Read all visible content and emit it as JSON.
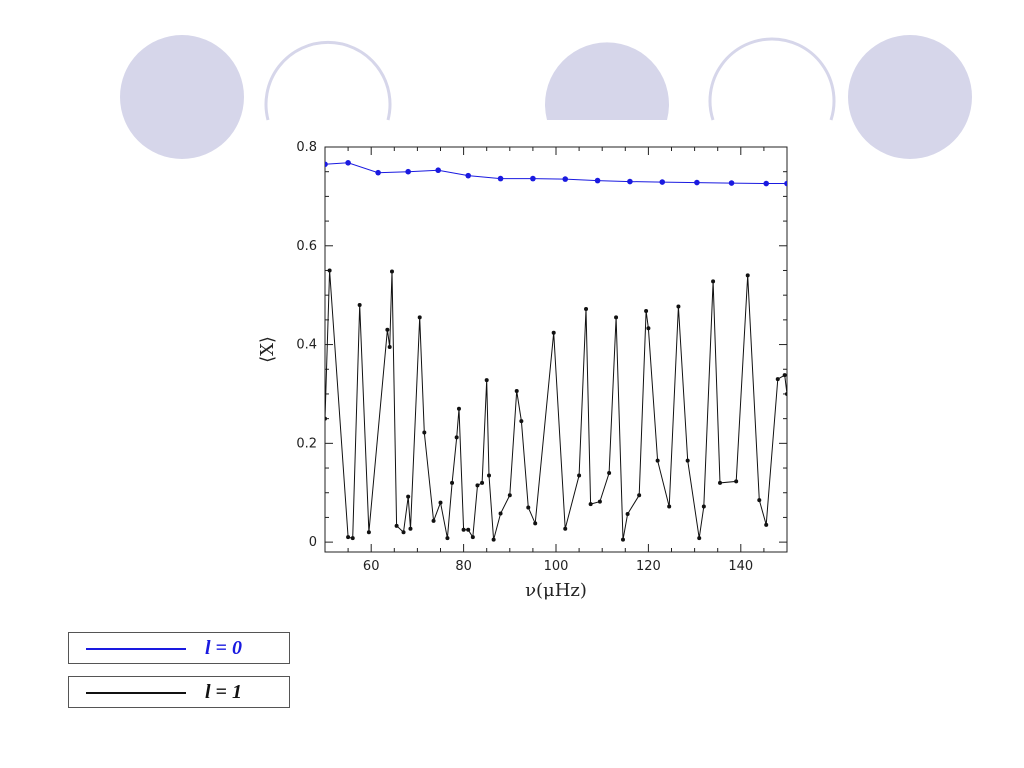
{
  "colors": {
    "decor_fill": "#d6d6ea",
    "decor_stroke": "#d6d6ea",
    "series_l0": "#1a1ae0",
    "series_l1": "#111111"
  },
  "chart_data": {
    "type": "line",
    "xlabel": "ν(μHz)",
    "ylabel": "⟨X⟩",
    "xlim": [
      50,
      150
    ],
    "ylim": [
      -0.02,
      0.8
    ],
    "xticks": [
      60,
      80,
      100,
      120,
      140
    ],
    "yticks": [
      0,
      0.2,
      0.4,
      0.6,
      0.8
    ],
    "ytick_labels": [
      "0",
      "0.2",
      "0.4",
      "0.6",
      "0.8"
    ],
    "grid": false,
    "series": [
      {
        "name": "l = 0",
        "color": "#1a1ae0",
        "points": [
          [
            50,
            0.765
          ],
          [
            55,
            0.768
          ],
          [
            61.5,
            0.748
          ],
          [
            68,
            0.75
          ],
          [
            74.5,
            0.753
          ],
          [
            81,
            0.742
          ],
          [
            88,
            0.736
          ],
          [
            95,
            0.736
          ],
          [
            102,
            0.735
          ],
          [
            109,
            0.732
          ],
          [
            116,
            0.73
          ],
          [
            123,
            0.729
          ],
          [
            130.5,
            0.728
          ],
          [
            138,
            0.727
          ],
          [
            145.5,
            0.726
          ],
          [
            150,
            0.726
          ]
        ]
      },
      {
        "name": "l = 1",
        "color": "#111111",
        "points": [
          [
            50,
            0.25
          ],
          [
            51,
            0.55
          ],
          [
            55,
            0.01
          ],
          [
            56,
            0.008
          ],
          [
            57.5,
            0.48
          ],
          [
            59.5,
            0.02
          ],
          [
            63.5,
            0.43
          ],
          [
            64,
            0.395
          ],
          [
            64.5,
            0.548
          ],
          [
            65.5,
            0.033
          ],
          [
            67,
            0.02
          ],
          [
            68,
            0.092
          ],
          [
            68.5,
            0.027
          ],
          [
            70.5,
            0.455
          ],
          [
            71.5,
            0.222
          ],
          [
            73.5,
            0.043
          ],
          [
            75,
            0.08
          ],
          [
            76.5,
            0.008
          ],
          [
            77.5,
            0.12
          ],
          [
            78.5,
            0.212
          ],
          [
            79,
            0.27
          ],
          [
            80,
            0.025
          ],
          [
            81,
            0.025
          ],
          [
            82,
            0.01
          ],
          [
            83,
            0.115
          ],
          [
            84,
            0.12
          ],
          [
            85,
            0.328
          ],
          [
            85.5,
            0.135
          ],
          [
            86.5,
            0.005
          ],
          [
            88,
            0.058
          ],
          [
            90,
            0.095
          ],
          [
            91.5,
            0.306
          ],
          [
            92.5,
            0.245
          ],
          [
            94,
            0.07
          ],
          [
            95.5,
            0.038
          ],
          [
            99.5,
            0.424
          ],
          [
            102,
            0.027
          ],
          [
            105,
            0.135
          ],
          [
            106.5,
            0.472
          ],
          [
            107.5,
            0.077
          ],
          [
            109.5,
            0.082
          ],
          [
            111.5,
            0.14
          ],
          [
            113,
            0.455
          ],
          [
            114.5,
            0.005
          ],
          [
            115.5,
            0.057
          ],
          [
            118,
            0.095
          ],
          [
            119.5,
            0.468
          ],
          [
            120,
            0.433
          ],
          [
            122,
            0.165
          ],
          [
            124.5,
            0.072
          ],
          [
            126.5,
            0.477
          ],
          [
            128.5,
            0.165
          ],
          [
            131,
            0.008
          ],
          [
            132,
            0.072
          ],
          [
            134,
            0.528
          ],
          [
            135.5,
            0.12
          ],
          [
            139,
            0.123
          ],
          [
            141.5,
            0.54
          ],
          [
            144,
            0.085
          ],
          [
            145.5,
            0.035
          ],
          [
            148,
            0.33
          ],
          [
            149.5,
            0.338
          ],
          [
            150,
            0.3
          ]
        ]
      }
    ],
    "legend_position": "bottom-left-outside"
  },
  "legend": {
    "items": [
      {
        "label": "l = 0",
        "color": "#1a1ae0"
      },
      {
        "label": "l = 1",
        "color": "#111111"
      }
    ]
  }
}
